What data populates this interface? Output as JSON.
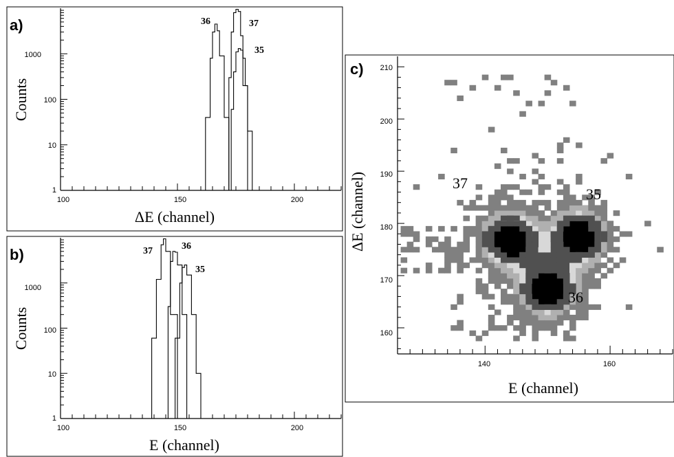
{
  "chart_data": [
    {
      "panel": "a)",
      "type": "line",
      "xlabel": "ΔE (channel)",
      "ylabel": "Counts",
      "xlim": [
        100,
        220
      ],
      "ylim": [
        1,
        10000
      ],
      "yscale": "log",
      "x_ticks": [
        "100",
        "150",
        "200"
      ],
      "y_ticks": [
        "1",
        "10",
        "100",
        "1000"
      ],
      "series": [
        {
          "label": "36",
          "x": [
            160,
            162,
            164,
            165,
            166,
            167,
            168,
            170,
            172
          ],
          "y": [
            1,
            40,
            800,
            3000,
            4500,
            3200,
            900,
            40,
            1
          ]
        },
        {
          "label": "37",
          "x": [
            170,
            172,
            173,
            174,
            175,
            176,
            177,
            178,
            180
          ],
          "y": [
            1,
            300,
            3000,
            8000,
            9500,
            8500,
            2500,
            200,
            1
          ]
        },
        {
          "label": "35",
          "x": [
            171,
            173,
            174,
            175,
            176,
            177,
            178,
            179,
            180,
            182
          ],
          "y": [
            1,
            60,
            400,
            1100,
            1300,
            1200,
            800,
            200,
            20,
            1
          ]
        }
      ],
      "annotations": [
        "36",
        "37",
        "35"
      ]
    },
    {
      "panel": "b)",
      "type": "line",
      "xlabel": "E (channel)",
      "ylabel": "Counts",
      "xlim": [
        100,
        220
      ],
      "ylim": [
        1,
        10000
      ],
      "yscale": "log",
      "x_ticks": [
        "100",
        "150",
        "200"
      ],
      "y_ticks": [
        "1",
        "10",
        "100",
        "1000"
      ],
      "series": [
        {
          "label": "37",
          "x": [
            136,
            139,
            141,
            143,
            144,
            145,
            147,
            150
          ],
          "y": [
            1,
            60,
            1200,
            7000,
            9500,
            5000,
            200,
            1
          ]
        },
        {
          "label": "36",
          "x": [
            143,
            146,
            147,
            148,
            149,
            150,
            152,
            154
          ],
          "y": [
            1,
            300,
            3000,
            5000,
            4800,
            2500,
            200,
            1
          ]
        },
        {
          "label": "35",
          "x": [
            146,
            149,
            151,
            152,
            153,
            154,
            156,
            158,
            160
          ],
          "y": [
            1,
            60,
            1000,
            2200,
            2500,
            1500,
            200,
            10,
            1
          ]
        }
      ],
      "annotations": [
        "37",
        "36",
        "35"
      ]
    },
    {
      "panel": "c)",
      "type": "heatmap",
      "xlabel": "E (channel)",
      "ylabel": "ΔE (channel)",
      "xlim": [
        126,
        170
      ],
      "ylim": [
        155,
        212
      ],
      "x_ticks": [
        "140",
        "160"
      ],
      "y_ticks": [
        "160",
        "170",
        "180",
        "190",
        "200",
        "210"
      ],
      "clusters": [
        {
          "label": "37",
          "E": 144,
          "dE": 177
        },
        {
          "label": "35",
          "E": 155,
          "dE": 177.5
        },
        {
          "label": "36",
          "E": 150,
          "dE": 167.5
        }
      ],
      "annotations": [
        "37",
        "35",
        "36"
      ],
      "colors": [
        "#000000",
        "#505050",
        "#808080",
        "#b0b0b0",
        "#d8d8d8"
      ]
    }
  ]
}
